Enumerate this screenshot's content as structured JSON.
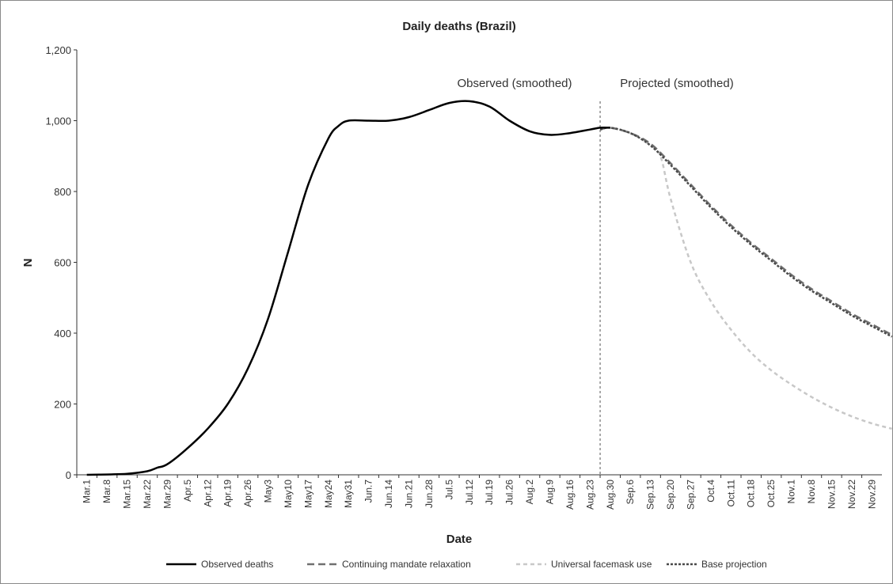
{
  "chart_data": {
    "type": "line",
    "title": "Daily deaths (Brazil)",
    "xlabel": "Date",
    "ylabel": "N",
    "ylim": [
      0,
      1200
    ],
    "yticks": [
      0,
      200,
      400,
      600,
      800,
      1000,
      1200
    ],
    "ytick_labels": [
      "0",
      "200",
      "400",
      "600",
      "800",
      "1,000",
      "1,200"
    ],
    "categories": [
      "Mar.1",
      "Mar.8",
      "Mar.15",
      "Mar.22",
      "Mar.29",
      "Apr.5",
      "Apr.12",
      "Apr.19",
      "Apr.26",
      "May3",
      "May10",
      "May17",
      "May24",
      "May31",
      "Jun.7",
      "Jun.14",
      "Jun.21",
      "Jun.28",
      "Jul.5",
      "Jul.12",
      "Jul.19",
      "Jul.26",
      "Aug.2",
      "Aug.9",
      "Aug.16",
      "Aug.23",
      "Aug.30",
      "Sep.6",
      "Sep.13",
      "Sep.20",
      "Sep.27",
      "Oct.4",
      "Oct.11",
      "Oct.18",
      "Oct.25",
      "Nov.1",
      "Nov.8",
      "Nov.15",
      "Nov.22",
      "Nov.29"
    ],
    "grid": false,
    "legend_position": "bottom",
    "divider_category": "Aug.30",
    "annotations": [
      "Observed (smoothed)",
      "Projected (smoothed)"
    ],
    "series": [
      {
        "name": "Observed deaths",
        "style": "solid",
        "color": "#000000",
        "x": [
          0,
          1,
          2,
          3,
          3.5,
          4,
          5,
          6,
          7,
          8,
          9,
          10,
          11,
          12,
          12.5,
          13,
          14,
          15,
          16,
          17,
          18,
          19,
          20,
          21,
          22,
          23,
          24,
          25,
          25.5,
          26
        ],
        "y": [
          0,
          1,
          3,
          10,
          20,
          30,
          75,
          130,
          200,
          300,
          440,
          630,
          820,
          950,
          985,
          1000,
          1000,
          1000,
          1010,
          1030,
          1050,
          1055,
          1040,
          1000,
          970,
          960,
          965,
          975,
          980,
          980
        ]
      },
      {
        "name": "Continuing mandate relaxation",
        "style": "long-dash",
        "color": "#707070",
        "x": [
          25.5,
          26,
          27,
          28,
          29,
          30,
          31,
          32,
          33,
          34,
          35,
          36,
          37,
          38,
          39,
          40
        ],
        "y": [
          975,
          980,
          965,
          935,
          880,
          820,
          760,
          705,
          655,
          610,
          565,
          525,
          490,
          455,
          425,
          395
        ]
      },
      {
        "name": "Universal facemask use",
        "style": "short-dash",
        "color": "#c8c8c8",
        "x": [
          25.5,
          26,
          27,
          28,
          28.5,
          29,
          30,
          31,
          32,
          33,
          34,
          35,
          36,
          37,
          38,
          39,
          40
        ],
        "y": [
          975,
          980,
          965,
          930,
          900,
          780,
          600,
          490,
          410,
          345,
          295,
          255,
          220,
          190,
          165,
          145,
          130
        ]
      },
      {
        "name": "Base projection",
        "style": "dotted",
        "color": "#4a4a4a",
        "x": [
          25.5,
          26,
          27,
          28,
          29,
          30,
          31,
          32,
          33,
          34,
          35,
          36,
          37,
          38,
          39,
          40
        ],
        "y": [
          975,
          980,
          965,
          930,
          875,
          815,
          755,
          700,
          650,
          605,
          560,
          520,
          485,
          450,
          420,
          390
        ]
      }
    ]
  }
}
